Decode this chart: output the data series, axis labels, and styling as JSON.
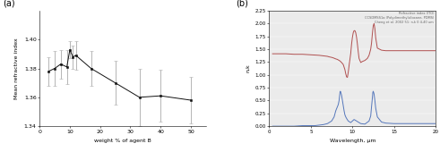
{
  "panel_a": {
    "x": [
      3,
      5,
      7,
      9,
      10,
      11,
      12,
      17,
      25,
      33,
      40,
      50
    ],
    "y": [
      1.378,
      1.38,
      1.383,
      1.381,
      1.393,
      1.388,
      1.389,
      1.38,
      1.37,
      1.36,
      1.361,
      1.358
    ],
    "yerr": [
      0.01,
      0.012,
      0.01,
      0.012,
      0.006,
      0.008,
      0.01,
      0.012,
      0.015,
      0.02,
      0.018,
      0.016
    ],
    "xlabel": "weight % of agent B",
    "ylabel": "Mean refractive index",
    "xlim": [
      0,
      55
    ],
    "ylim": [
      1.34,
      1.42
    ],
    "yticks": [
      1.34,
      1.36,
      1.38,
      1.4
    ],
    "xticks": [
      0,
      10,
      20,
      30,
      40,
      50
    ],
    "color": "#111111",
    "ecolor": "#aaaaaa",
    "label": "(a)"
  },
  "panel_b": {
    "legend_text_line1": "Refractive index (ITO)",
    "legend_text_line2": "CCSDMSS1a (Polydimethylsiloxane, PDMS)",
    "legend_text_line3": "Cheng et al. 2002 51: n,k 0.4-40 um",
    "xlabel": "Wavelength, μm",
    "ylabel": "n,k",
    "xlim": [
      0,
      20
    ],
    "ylim": [
      0,
      2.25
    ],
    "yticks": [
      0,
      0.25,
      0.5,
      0.75,
      1.0,
      1.25,
      1.5,
      1.75,
      2.0,
      2.25
    ],
    "xticks": [
      0,
      5,
      10,
      15,
      20
    ],
    "label": "(b)",
    "red_n_x": [
      0.4,
      1.0,
      2.0,
      2.5,
      3.0,
      3.5,
      4.0,
      4.5,
      5.0,
      5.5,
      6.0,
      6.5,
      7.0,
      7.2,
      7.5,
      7.7,
      8.0,
      8.2,
      8.5,
      8.7,
      8.9,
      9.0,
      9.1,
      9.2,
      9.3,
      9.4,
      9.5,
      9.6,
      9.7,
      9.8,
      9.9,
      10.0,
      10.1,
      10.2,
      10.3,
      10.4,
      10.5,
      10.6,
      10.7,
      10.8,
      11.0,
      11.2,
      11.5,
      11.8,
      12.0,
      12.2,
      12.3,
      12.4,
      12.5,
      12.6,
      12.7,
      12.8,
      13.0,
      13.5,
      14.0,
      15.0,
      16.0,
      17.0,
      18.0,
      19.0,
      20.0
    ],
    "red_n_y": [
      1.41,
      1.41,
      1.41,
      1.405,
      1.4,
      1.4,
      1.4,
      1.395,
      1.39,
      1.385,
      1.38,
      1.37,
      1.36,
      1.35,
      1.34,
      1.33,
      1.31,
      1.3,
      1.27,
      1.24,
      1.2,
      1.15,
      1.1,
      1.02,
      0.96,
      0.95,
      1.05,
      1.18,
      1.3,
      1.42,
      1.6,
      1.73,
      1.82,
      1.86,
      1.86,
      1.82,
      1.73,
      1.6,
      1.45,
      1.32,
      1.24,
      1.26,
      1.28,
      1.32,
      1.38,
      1.5,
      1.62,
      1.8,
      1.95,
      2.0,
      1.9,
      1.72,
      1.52,
      1.48,
      1.47,
      1.47,
      1.47,
      1.47,
      1.47,
      1.47,
      1.47
    ],
    "blue_k_x": [
      0.4,
      1.0,
      2.0,
      3.0,
      3.5,
      4.0,
      4.5,
      5.0,
      5.5,
      6.0,
      6.5,
      7.0,
      7.5,
      7.8,
      8.0,
      8.2,
      8.3,
      8.4,
      8.5,
      8.55,
      8.6,
      8.65,
      8.7,
      8.8,
      8.9,
      9.0,
      9.1,
      9.2,
      9.3,
      9.5,
      9.8,
      10.0,
      10.2,
      10.5,
      11.0,
      11.5,
      12.0,
      12.2,
      12.3,
      12.4,
      12.45,
      12.5,
      12.6,
      12.7,
      12.8,
      13.0,
      13.5,
      14.0,
      15.0,
      16.0,
      17.0,
      18.0,
      19.0,
      20.0
    ],
    "blue_k_y": [
      0.0,
      0.0,
      0.0,
      0.0,
      0.005,
      0.01,
      0.01,
      0.01,
      0.01,
      0.02,
      0.03,
      0.05,
      0.1,
      0.18,
      0.3,
      0.38,
      0.42,
      0.5,
      0.65,
      0.68,
      0.66,
      0.63,
      0.6,
      0.5,
      0.4,
      0.3,
      0.22,
      0.18,
      0.15,
      0.1,
      0.07,
      0.1,
      0.13,
      0.1,
      0.05,
      0.04,
      0.1,
      0.2,
      0.38,
      0.55,
      0.65,
      0.68,
      0.63,
      0.5,
      0.35,
      0.18,
      0.08,
      0.06,
      0.05,
      0.05,
      0.05,
      0.05,
      0.05,
      0.05
    ],
    "red_color": "#b05050",
    "blue_color": "#5577bb",
    "bg_color": "#ebebeb"
  }
}
